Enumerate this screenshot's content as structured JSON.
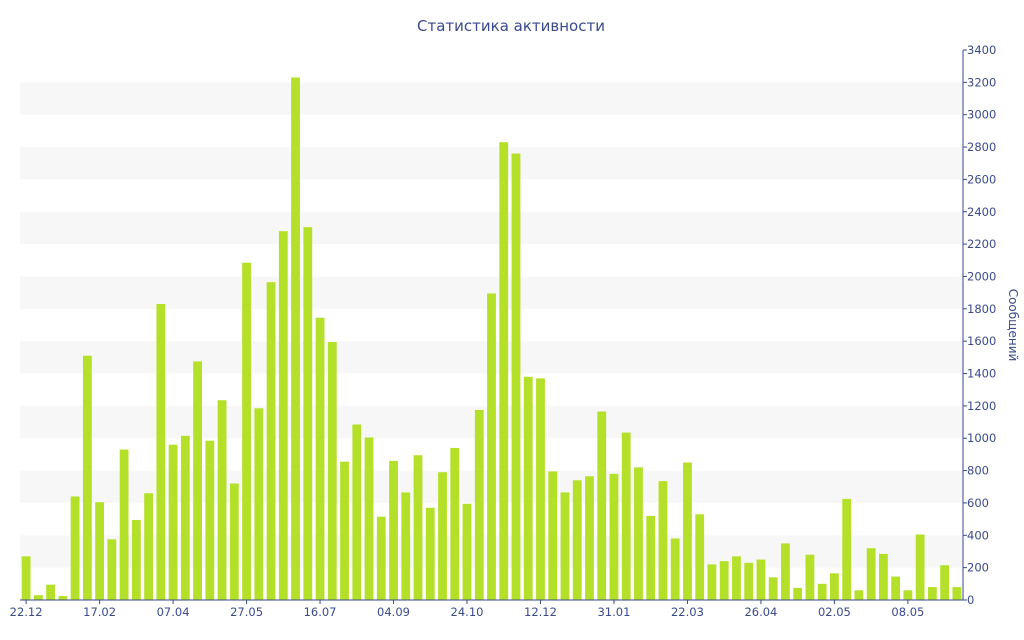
{
  "chart_data": {
    "type": "bar",
    "title": "Статистика активности",
    "xlabel": "",
    "ylabel": "Сообщений",
    "ylim": [
      0,
      3400
    ],
    "yticks": [
      0,
      200,
      400,
      600,
      800,
      1000,
      1200,
      1400,
      1600,
      1800,
      2000,
      2200,
      2400,
      2600,
      2800,
      3000,
      3200,
      3400
    ],
    "y_axis_side": "right",
    "grid": "alternating horizontal bands",
    "legend": "none",
    "xtick_labels": [
      {
        "index": 0,
        "label": "22.12"
      },
      {
        "index": 6,
        "label": "17.02"
      },
      {
        "index": 12,
        "label": "07.04"
      },
      {
        "index": 18,
        "label": "27.05"
      },
      {
        "index": 24,
        "label": "16.07"
      },
      {
        "index": 30,
        "label": "04.09"
      },
      {
        "index": 36,
        "label": "24.10"
      },
      {
        "index": 42,
        "label": "12.12"
      },
      {
        "index": 48,
        "label": "31.01"
      },
      {
        "index": 54,
        "label": "22.03"
      },
      {
        "index": 60,
        "label": "26.04"
      },
      {
        "index": 66,
        "label": "02.05"
      },
      {
        "index": 72,
        "label": "08.05"
      }
    ],
    "values": [
      270,
      30,
      95,
      25,
      640,
      1510,
      605,
      375,
      930,
      495,
      660,
      1830,
      960,
      1015,
      1475,
      985,
      1235,
      720,
      2085,
      1185,
      1965,
      2280,
      3230,
      2305,
      1745,
      1595,
      855,
      1085,
      1005,
      515,
      860,
      665,
      895,
      570,
      790,
      940,
      595,
      1175,
      1895,
      2830,
      2760,
      1380,
      1370,
      795,
      665,
      740,
      765,
      1165,
      780,
      1035,
      820,
      520,
      735,
      380,
      850,
      530,
      220,
      240,
      270,
      230,
      250,
      140,
      350,
      75,
      280,
      100,
      165,
      625,
      60,
      320,
      285,
      145,
      60,
      405,
      80,
      215,
      80
    ],
    "bar_color": "#b5e02a",
    "band_color": "#f7f7f7",
    "text_color": "#3a4a8c",
    "axis_color": "#3a4a8c"
  }
}
